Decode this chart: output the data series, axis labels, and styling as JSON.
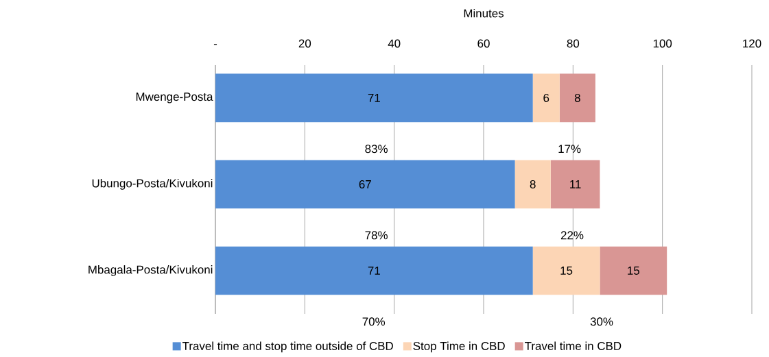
{
  "chart_data": {
    "type": "bar",
    "orientation": "horizontal",
    "stacked": true,
    "xlabel": "Minutes",
    "categories": [
      "Mwenge-Posta",
      "Ubungo-Posta/Kivukoni",
      "Mbagala-Posta/Kivukoni"
    ],
    "series": [
      {
        "name": "Travel time and stop time outside of CBD",
        "color": "#558ed5",
        "values": [
          71,
          67,
          71
        ]
      },
      {
        "name": "Stop Time in CBD",
        "color": "#fcd5b5",
        "values": [
          6,
          8,
          15
        ]
      },
      {
        "name": "Travel time in CBD",
        "color": "#d99694",
        "values": [
          8,
          11,
          15
        ]
      }
    ],
    "xlim": [
      0,
      120
    ],
    "xticks": [
      {
        "value": 0,
        "label": "-"
      },
      20,
      40,
      60,
      80,
      100,
      120
    ],
    "grid": "x",
    "legend": "bottom",
    "data_labels": true,
    "annotations": [
      "83%",
      "17%",
      "78%",
      "22%",
      "70%",
      "30%"
    ]
  }
}
